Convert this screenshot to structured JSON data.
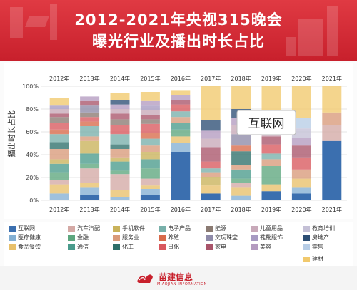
{
  "header": {
    "title_line1": "2012-2021年央视315晚会",
    "title_line2": "曝光行业及播出时长占比",
    "colors": {
      "primary": "#c8202c",
      "primary_light": "#e03a43"
    }
  },
  "chart_data": {
    "type": "bar",
    "stacked": true,
    "ylabel": "播出时长占比",
    "y_ticks": [
      "0%",
      "20%",
      "40%",
      "60%",
      "80%",
      "100%"
    ],
    "ylim": [
      0,
      100
    ],
    "categories": [
      "2012年",
      "2013年",
      "2014年",
      "2015年",
      "2016年",
      "2017年",
      "2018年",
      "2019年",
      "2020年",
      "2021年"
    ],
    "grid": true,
    "legend_position": "bottom",
    "callout": "互联网",
    "series": [
      {
        "name": "互联网",
        "color": "#3b6faf",
        "values": [
          0,
          5,
          0,
          5,
          42,
          6,
          0,
          8,
          6,
          52
        ]
      },
      {
        "name": "医疗健康",
        "color": "#84b0d3",
        "values": [
          6,
          6,
          3,
          5,
          8,
          0,
          4,
          0,
          5,
          0
        ]
      },
      {
        "name": "食品餐饮",
        "color": "#e8c06a",
        "values": [
          8,
          4,
          6,
          3,
          6,
          7,
          7,
          6,
          8,
          0
        ]
      },
      {
        "name": "汽车汽配",
        "color": "#d4a9a5",
        "values": [
          4,
          13,
          14,
          6,
          0,
          0,
          4,
          0,
          0,
          14
        ]
      },
      {
        "name": "金融",
        "color": "#5da67e",
        "values": [
          6,
          4,
          3,
          9,
          6,
          0,
          4,
          16,
          0,
          0
        ]
      },
      {
        "name": "通信",
        "color": "#4a9b8c",
        "values": [
          8,
          9,
          8,
          8,
          6,
          0,
          8,
          0,
          0,
          0
        ]
      },
      {
        "name": "手机软件",
        "color": "#c9b25a",
        "values": [
          4,
          11,
          3,
          6,
          0,
          7,
          0,
          0,
          0,
          0
        ]
      },
      {
        "name": "服务业",
        "color": "#d99a7a",
        "values": [
          9,
          4,
          8,
          6,
          5,
          4,
          4,
          6,
          8,
          11
        ]
      },
      {
        "name": "化工",
        "color": "#2e6f6a",
        "values": [
          6,
          0,
          4,
          0,
          0,
          0,
          12,
          0,
          0,
          0
        ]
      },
      {
        "name": "电子产品",
        "color": "#78b0aa",
        "values": [
          7,
          9,
          9,
          6,
          5,
          4,
          0,
          5,
          0,
          0
        ]
      },
      {
        "name": "养殖",
        "color": "#d86a4a",
        "values": [
          4,
          4,
          0,
          5,
          0,
          0,
          5,
          0,
          0,
          0
        ]
      },
      {
        "name": "日化",
        "color": "#d9585e",
        "values": [
          6,
          4,
          8,
          8,
          6,
          6,
          0,
          8,
          10,
          0
        ]
      },
      {
        "name": "能源",
        "color": "#8a7a72",
        "values": [
          5,
          4,
          5,
          4,
          0,
          0,
          0,
          0,
          0,
          0
        ]
      },
      {
        "name": "文玩珠宝",
        "color": "#8e8aa8",
        "values": [
          0,
          6,
          0,
          0,
          0,
          0,
          10,
          0,
          0,
          0
        ]
      },
      {
        "name": "家电",
        "color": "#a9546a",
        "values": [
          3,
          4,
          5,
          4,
          4,
          12,
          0,
          7,
          11,
          0
        ]
      },
      {
        "name": "儿童用品",
        "color": "#c8a9b9",
        "values": [
          4,
          0,
          4,
          4,
          0,
          8,
          8,
          8,
          0,
          0
        ]
      },
      {
        "name": "鞋靴服饰",
        "color": "#a79ac2",
        "values": [
          3,
          0,
          0,
          4,
          0,
          0,
          0,
          0,
          0,
          0
        ]
      },
      {
        "name": "美容",
        "color": "#b49bc0",
        "values": [
          0,
          4,
          4,
          4,
          4,
          7,
          6,
          0,
          7,
          0
        ]
      },
      {
        "name": "教育培训",
        "color": "#c4c0d6",
        "values": [
          0,
          0,
          0,
          0,
          0,
          0,
          0,
          7,
          8,
          0
        ]
      },
      {
        "name": "房地产",
        "color": "#2d4e74",
        "values": [
          0,
          0,
          4,
          0,
          0,
          9,
          8,
          0,
          0,
          0
        ]
      },
      {
        "name": "零售",
        "color": "#b7cde6",
        "values": [
          0,
          0,
          0,
          0,
          0,
          0,
          0,
          6,
          9,
          0
        ]
      },
      {
        "name": "建材",
        "color": "#f1c96d",
        "values": [
          7,
          0,
          6,
          8,
          4,
          30,
          20,
          23,
          28,
          23
        ]
      }
    ],
    "legend_order": [
      "互联网",
      "汽车汽配",
      "手机软件",
      "电子产品",
      "能源",
      "儿童用品",
      "教育培训",
      "医疗健康",
      "金融",
      "服务业",
      "养殖",
      "文玩珠宝",
      "鞋靴服饰",
      "房地产",
      "食品餐饮",
      "通信",
      "化工",
      "日化",
      "家电",
      "美容",
      "零售",
      "建材"
    ]
  },
  "footer": {
    "brand_name": "苗建信息",
    "brand_sub": "MIAOJIAN INFORMATION"
  }
}
